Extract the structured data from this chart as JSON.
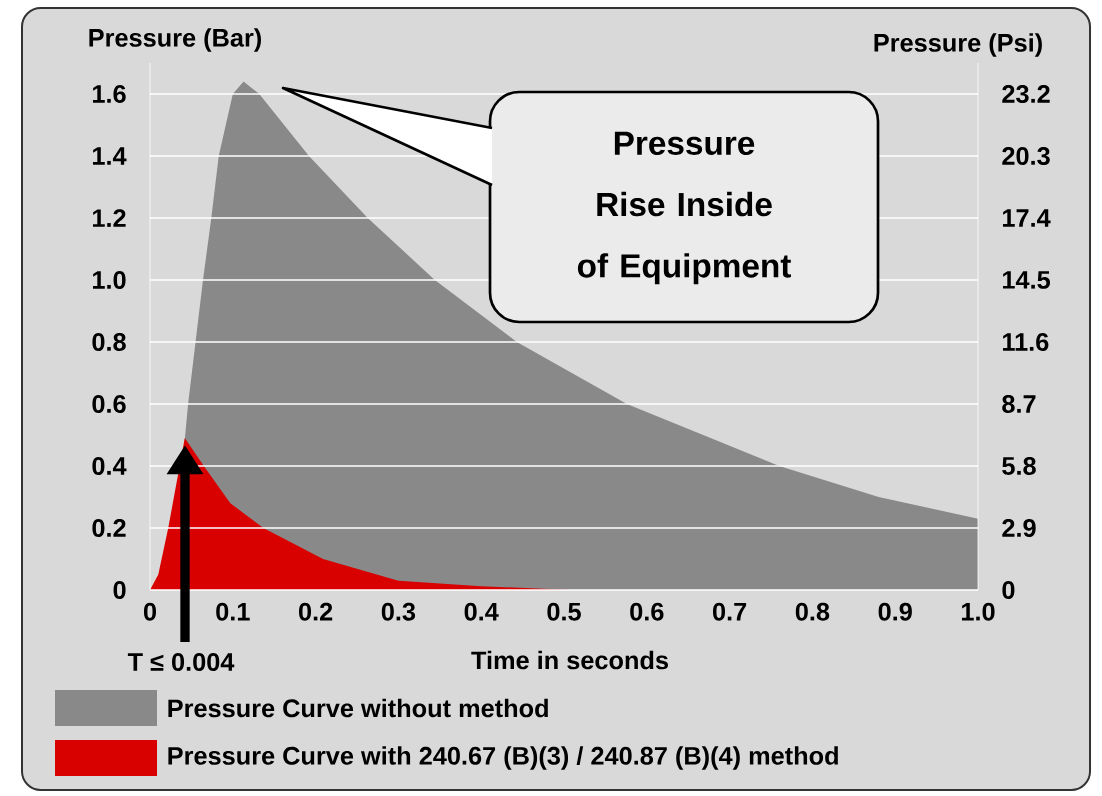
{
  "chart_data": {
    "type": "area",
    "xlabel": "Time in seconds",
    "ylabel": "Pressure (Bar)",
    "y2label": "Pressure (Psi)",
    "xlim": [
      0,
      1
    ],
    "xticks": [
      0,
      0.1,
      0.2,
      0.3,
      0.4,
      0.5,
      0.6,
      0.7,
      0.8,
      0.9,
      {
        "value": 1,
        "label": "1.0"
      }
    ],
    "ylim": [
      0,
      1.7
    ],
    "yticks": [
      0,
      0.2,
      0.4,
      0.6,
      0.8,
      {
        "value": 1,
        "label": "1.0"
      },
      1.2,
      1.4,
      1.6
    ],
    "y2lim": [
      0,
      24.65
    ],
    "y2ticks": [
      0,
      2.9,
      5.8,
      8.7,
      11.6,
      14.5,
      17.4,
      20.3,
      23.2
    ],
    "grid": "y",
    "legend": "bottom",
    "series": [
      {
        "name": "Pressure Curve without method",
        "color": "#898989",
        "x": [
          0.025,
          0.035,
          0.04,
          0.046,
          0.055,
          0.064,
          0.074,
          0.083,
          0.1,
          0.113,
          0.132,
          0.192,
          0.263,
          0.344,
          0.443,
          0.576,
          0.76,
          0.88,
          1.0
        ],
        "values": [
          0,
          null,
          null,
          0.6,
          0.8,
          1.0,
          1.2,
          1.4,
          1.6,
          1.64,
          1.6,
          1.4,
          1.2,
          1.0,
          0.8,
          0.6,
          0.4,
          0.3,
          0.23
        ]
      },
      {
        "name": "Pressure Curve with 240.67 (B)(3) / 240.87 (B)(4) method",
        "color": "#d90000",
        "x": [
          0,
          0.01,
          0.022,
          0.032,
          0.042,
          0.065,
          0.097,
          0.137,
          0.209,
          0.3,
          0.4,
          0.51
        ],
        "values": [
          0,
          0.05,
          0.2,
          null,
          0.49,
          0.4,
          0.28,
          0.2,
          0.1,
          0.03,
          0.012,
          0
        ]
      }
    ],
    "annotations": [
      "Pressure Rise Inside of Equipment",
      "T ≤ 0.004"
    ]
  }
}
